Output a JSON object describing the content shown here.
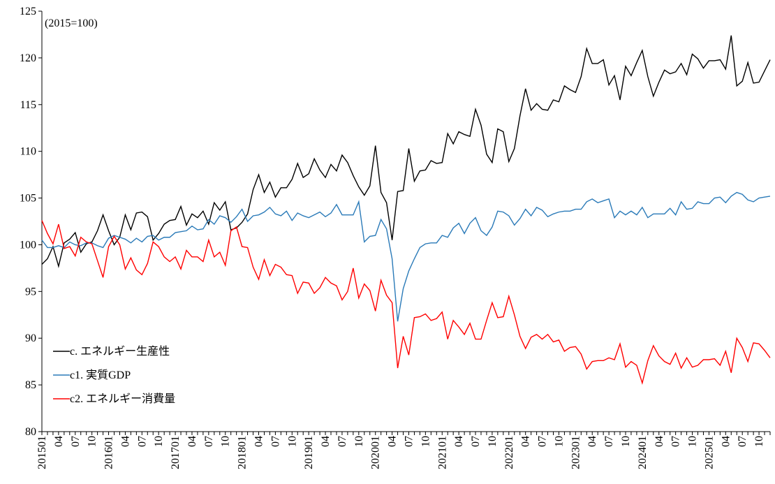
{
  "chart_data": {
    "type": "line",
    "annotation": "(2015=100)",
    "categories": [
      "201501",
      null,
      null,
      "04",
      null,
      null,
      "07",
      null,
      null,
      "10",
      null,
      null,
      "201601",
      null,
      null,
      "04",
      null,
      null,
      "07",
      null,
      null,
      "10",
      null,
      null,
      "201701",
      null,
      null,
      "04",
      null,
      null,
      "07",
      null,
      null,
      "10",
      null,
      null,
      "201801",
      null,
      null,
      "04",
      null,
      null,
      "07",
      null,
      null,
      "10",
      null,
      null,
      "201901",
      null,
      null,
      "04",
      null,
      null,
      "07",
      null,
      null,
      "10",
      null,
      null,
      "202001",
      null,
      null,
      "04",
      null,
      null,
      "07",
      null,
      null,
      "10",
      null,
      null,
      "202101",
      null,
      null,
      "04",
      null,
      null,
      "07",
      null,
      null,
      "10",
      null,
      null,
      "202201",
      null,
      null,
      "04",
      null,
      null,
      "07",
      null,
      null,
      "10",
      null,
      null,
      "202301",
      null,
      null,
      "04",
      null,
      null,
      "07",
      null,
      null,
      "10",
      null,
      null,
      "202401",
      null,
      null,
      "04",
      null,
      null,
      "07",
      null,
      null,
      "10",
      null,
      null,
      "202501",
      null,
      null,
      "04",
      null,
      null,
      "07",
      null,
      null,
      "10",
      null,
      null
    ],
    "series": [
      {
        "name": "c. エネルギー生産性",
        "color": "#000000",
        "values": [
          97.9,
          98.5,
          99.8,
          97.7,
          100.2,
          100.6,
          101.3,
          99.2,
          100.1,
          100.3,
          101.5,
          103.2,
          101.5,
          100.0,
          100.8,
          103.2,
          101.6,
          103.4,
          103.5,
          103.0,
          100.5,
          101.2,
          102.2,
          102.6,
          102.7,
          104.1,
          102.1,
          103.3,
          102.9,
          103.6,
          102.2,
          104.5,
          103.7,
          104.6,
          101.6,
          101.8,
          102.4,
          103.3,
          105.9,
          107.5,
          105.6,
          106.7,
          105.1,
          106.1,
          106.1,
          107.0,
          108.7,
          107.2,
          107.6,
          109.2,
          108.0,
          107.2,
          108.6,
          107.9,
          109.6,
          108.8,
          107.4,
          106.2,
          105.3,
          106.3,
          110.6,
          105.6,
          104.5,
          100.5,
          105.7,
          105.8,
          110.3,
          106.8,
          107.9,
          108.0,
          109.0,
          108.7,
          108.8,
          111.9,
          110.8,
          112.1,
          111.8,
          111.6,
          114.5,
          112.8,
          109.7,
          108.8,
          112.4,
          112.1,
          108.9,
          110.3,
          113.8,
          116.7,
          114.4,
          115.1,
          114.5,
          114.4,
          115.5,
          115.3,
          117.0,
          116.6,
          116.3,
          118.0,
          121.0,
          119.4,
          119.4,
          119.8,
          117.1,
          118.1,
          115.5,
          119.1,
          118.1,
          119.5,
          120.8,
          118.0,
          115.9,
          117.4,
          118.7,
          118.3,
          118.5,
          119.4,
          118.2,
          120.4,
          119.9,
          118.9,
          119.7,
          119.7,
          119.8,
          118.8,
          122.4,
          117.0,
          117.5,
          119.5,
          117.3,
          117.4,
          118.6,
          119.8
        ]
      },
      {
        "name": "c1. 実質GDP",
        "color": "#2a7ab8",
        "values": [
          100.5,
          99.7,
          99.7,
          99.9,
          99.7,
          100.3,
          100.0,
          99.9,
          100.2,
          100.2,
          99.9,
          99.7,
          100.7,
          101.0,
          100.8,
          100.6,
          100.2,
          100.7,
          100.3,
          100.9,
          101.0,
          100.5,
          100.8,
          100.8,
          101.3,
          101.4,
          101.5,
          102.0,
          101.6,
          101.7,
          102.7,
          102.2,
          103.1,
          102.9,
          102.4,
          103.0,
          103.8,
          102.5,
          103.1,
          103.2,
          103.5,
          104.0,
          103.3,
          103.1,
          103.6,
          102.6,
          103.4,
          103.1,
          102.9,
          103.2,
          103.5,
          103.0,
          103.4,
          104.3,
          103.2,
          103.2,
          103.2,
          104.6,
          100.3,
          100.9,
          101.0,
          102.7,
          101.7,
          98.5,
          91.8,
          95.3,
          97.2,
          98.5,
          99.7,
          100.1,
          100.2,
          100.2,
          101.0,
          100.8,
          101.8,
          102.3,
          101.2,
          102.3,
          102.9,
          101.5,
          101.0,
          101.9,
          103.6,
          103.5,
          103.1,
          102.1,
          102.8,
          103.8,
          103.1,
          104.0,
          103.7,
          103.0,
          103.3,
          103.5,
          103.6,
          103.6,
          103.8,
          103.8,
          104.6,
          104.9,
          104.5,
          104.7,
          104.9,
          102.9,
          103.6,
          103.2,
          103.6,
          103.2,
          104.0,
          102.9,
          103.3,
          103.3,
          103.3,
          103.9,
          103.2,
          104.6,
          103.8,
          103.9,
          104.6,
          104.4,
          104.4,
          105.0,
          105.1,
          104.5,
          105.2,
          105.6,
          105.4,
          104.8,
          104.6,
          105.0,
          105.1,
          105.2
        ]
      },
      {
        "name": "c2. エネルギー消費量",
        "color": "#ff0000",
        "values": [
          102.6,
          101.2,
          100.1,
          102.2,
          99.6,
          99.8,
          98.8,
          100.8,
          100.3,
          100.1,
          98.3,
          96.5,
          99.8,
          100.9,
          100.0,
          97.4,
          98.6,
          97.3,
          96.8,
          98.0,
          100.3,
          99.8,
          98.7,
          98.2,
          98.7,
          97.4,
          99.4,
          98.7,
          98.7,
          98.2,
          100.5,
          98.7,
          99.2,
          97.8,
          101.5,
          101.9,
          99.8,
          99.7,
          97.6,
          96.3,
          98.4,
          96.7,
          97.9,
          97.6,
          96.8,
          96.7,
          94.8,
          96.0,
          95.9,
          94.8,
          95.4,
          96.5,
          95.9,
          95.6,
          94.1,
          95.0,
          97.5,
          94.3,
          95.8,
          95.1,
          92.9,
          96.2,
          94.6,
          93.8,
          86.8,
          90.2,
          88.2,
          92.2,
          92.3,
          92.6,
          91.9,
          92.1,
          92.8,
          89.9,
          91.9,
          91.2,
          90.4,
          91.6,
          89.9,
          89.9,
          91.9,
          93.8,
          92.2,
          92.3,
          94.5,
          92.5,
          90.2,
          88.9,
          90.1,
          90.4,
          89.9,
          90.4,
          89.6,
          89.8,
          88.6,
          89.0,
          89.1,
          88.3,
          86.7,
          87.5,
          87.6,
          87.6,
          87.9,
          87.7,
          89.4,
          86.9,
          87.5,
          87.1,
          85.2,
          87.6,
          89.2,
          88.1,
          87.5,
          87.2,
          88.4,
          86.8,
          87.9,
          86.9,
          87.1,
          87.7,
          87.7,
          87.8,
          87.1,
          88.6,
          86.3,
          90.0,
          89.0,
          87.5,
          89.5,
          89.4,
          88.7,
          87.9
        ]
      }
    ],
    "ylim": [
      80,
      125
    ],
    "yticks": [
      80,
      85,
      90,
      95,
      100,
      105,
      110,
      115,
      120,
      125
    ],
    "grid": false,
    "legend": "lower left"
  }
}
